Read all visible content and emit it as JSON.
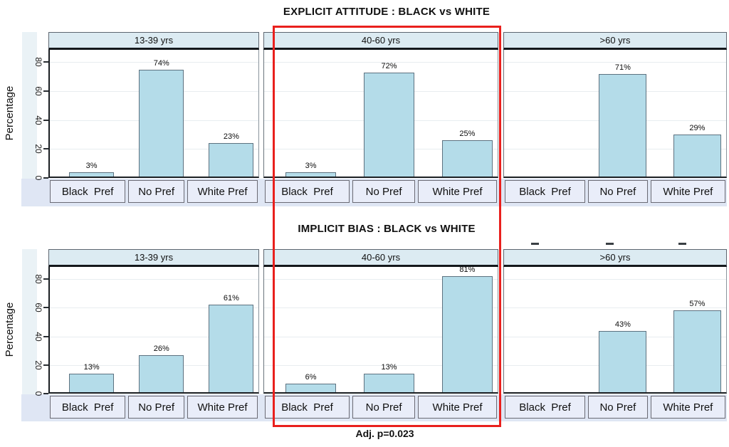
{
  "chart_data": [
    {
      "type": "bar",
      "title": "EXPLICIT ATTITUDE : BLACK vs WHITE",
      "ylabel": "Percentage",
      "ylim": [
        0,
        90
      ],
      "yticks": [
        0,
        20,
        40,
        60,
        80
      ],
      "grid": true,
      "legend": "none",
      "categories": [
        "Black  Pref",
        "No Pref",
        "White Pref"
      ],
      "panels": [
        {
          "label": "13-39 yrs",
          "values": [
            3,
            74,
            23
          ],
          "value_labels": [
            "3%",
            "74%",
            "23%"
          ]
        },
        {
          "label": "40-60 yrs",
          "values": [
            3,
            72,
            25
          ],
          "value_labels": [
            "3%",
            "72%",
            "25%"
          ]
        },
        {
          "label": ">60 yrs",
          "values": [
            0,
            71,
            29
          ],
          "value_labels": [
            "",
            "71%",
            "29%"
          ]
        }
      ]
    },
    {
      "type": "bar",
      "title": "IMPLICIT BIAS : BLACK vs WHITE",
      "ylabel": "Percentage",
      "ylim": [
        0,
        90
      ],
      "yticks": [
        0,
        20,
        40,
        60,
        80
      ],
      "grid": true,
      "legend": "none",
      "categories": [
        "Black  Pref",
        "No Pref",
        "White Pref"
      ],
      "panels": [
        {
          "label": "13-39 yrs",
          "values": [
            13,
            26,
            61
          ],
          "value_labels": [
            "13%",
            "26%",
            "61%"
          ]
        },
        {
          "label": "40-60 yrs",
          "values": [
            6,
            13,
            81
          ],
          "value_labels": [
            "6%",
            "13%",
            "81%"
          ]
        },
        {
          "label": ">60 yrs",
          "values": [
            0,
            43,
            57
          ],
          "value_labels": [
            "",
            "43%",
            "57%"
          ]
        }
      ]
    }
  ],
  "annotation": {
    "text": "Adj. p=0.023"
  },
  "highlight": {
    "label": "40-60 yrs",
    "color": "#e9201d"
  },
  "artifacts": {
    "stray_dash_count": 3
  },
  "colors": {
    "bar_fill": "#b4dce9",
    "bar_border": "#5d7280",
    "panel_header_fill": "#dcebf2",
    "panel_header_border": "#5d6670",
    "plot_bg": "#ffffff",
    "gridline": "#e8edf0",
    "axis_line": "#1b1f23",
    "xlabel_box_fill": "#e9edf9",
    "xlabel_box_border": "#6a6a74",
    "xlabel_strip": "#dfe6f4",
    "ytick_strip": "#eaf2f6",
    "text": "#111111"
  }
}
